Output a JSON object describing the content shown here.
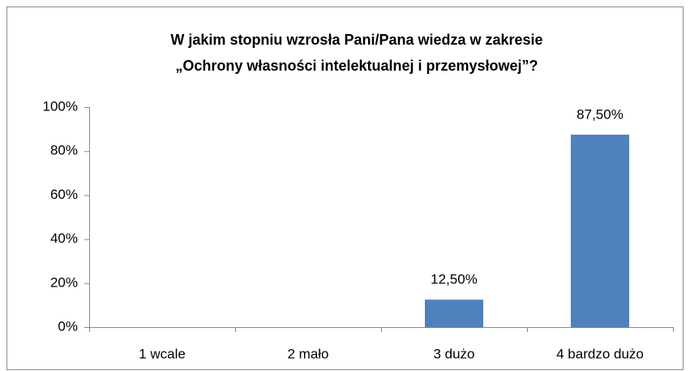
{
  "chart_data": {
    "type": "bar",
    "title": [
      "W jakim stopniu wzrosła Pani/Pana wiedza w zakresie",
      "„Ochrony własności intelektualnej i przemysłowej”?"
    ],
    "categories": [
      "1 wcale",
      "2 mało",
      "3 dużo",
      "4 bardzo dużo"
    ],
    "values": [
      0,
      0,
      12.5,
      87.5
    ],
    "value_labels": [
      null,
      null,
      "12,50%",
      "87,50%"
    ],
    "color": "#4f81bd",
    "ylim": [
      0,
      100
    ],
    "yticks": [
      {
        "value": 0,
        "label": "0%"
      },
      {
        "value": 20,
        "label": "20%"
      },
      {
        "value": 40,
        "label": "40%"
      },
      {
        "value": 60,
        "label": "60%"
      },
      {
        "value": 80,
        "label": "80%"
      },
      {
        "value": 100,
        "label": "100%"
      }
    ],
    "grid": false
  }
}
